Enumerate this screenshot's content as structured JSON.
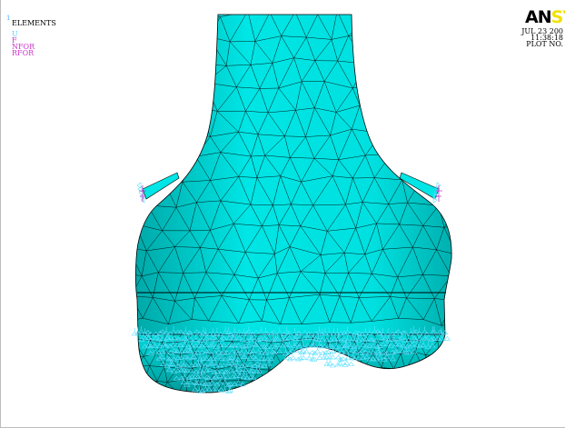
{
  "window_number": "1",
  "plot_title": "ELEMENTS",
  "legend": [
    {
      "label": "U",
      "color": "#4fd6ff"
    },
    {
      "label": "F",
      "color": "#cc33cc"
    },
    {
      "label": "NFOR",
      "color": "#cc33cc"
    },
    {
      "label": "RFOR",
      "color": "#cc33cc"
    }
  ],
  "logo": {
    "dark": "AN",
    "accent": "SY"
  },
  "stamp": {
    "date": "JUL 23 200",
    "time": "11:38:18",
    "plot_no": "PLOT NO."
  },
  "colors": {
    "mesh_fill": "#00e5e5",
    "mesh_shade": "#00a8a8",
    "mesh_lines": "#000000",
    "constraint": "#5fe0ff",
    "force_marker": "#cc33cc",
    "background": "#ffffff"
  }
}
